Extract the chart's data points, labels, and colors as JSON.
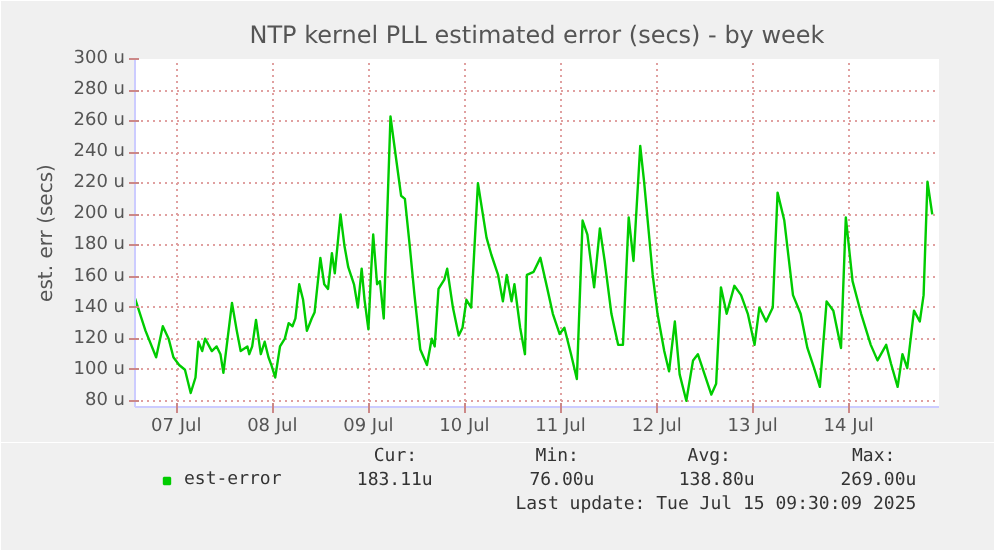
{
  "chart_data": {
    "type": "line",
    "title": "NTP kernel PLL estimated error (secs) - by week",
    "ylabel": "est. err (secs)",
    "x": [
      "2025-07-07T01:41",
      "2025-07-07T04:19",
      "2025-07-07T06:58",
      "2025-07-07T08:38",
      "2025-07-07T10:05",
      "2025-07-07T11:17",
      "2025-07-07T12:43",
      "2025-07-07T14:10",
      "2025-07-07T15:36",
      "2025-07-07T16:48",
      "2025-07-07T17:31",
      "2025-07-07T18:29",
      "2025-07-07T19:12",
      "2025-07-07T20:53",
      "2025-07-07T22:05",
      "2025-07-07T23:02",
      "2025-07-07T23:46",
      "2025-07-08T01:55",
      "2025-07-08T03:07",
      "2025-07-08T04:05",
      "2025-07-08T05:46",
      "2025-07-08T06:14",
      "2025-07-08T06:58",
      "2025-07-08T07:55",
      "2025-07-08T09:07",
      "2025-07-08T10:05",
      "2025-07-08T11:02",
      "2025-07-08T11:46",
      "2025-07-08T12:43",
      "2025-07-08T13:55",
      "2025-07-08T15:07",
      "2025-07-08T16:05",
      "2025-07-08T17:02",
      "2025-07-08T17:46",
      "2025-07-08T18:43",
      "2025-07-08T19:41",
      "2025-07-08T20:38",
      "2025-07-08T21:50",
      "2025-07-08T22:34",
      "2025-07-09T00:00",
      "2025-07-09T00:58",
      "2025-07-09T01:55",
      "2025-07-09T02:53",
      "2025-07-09T03:36",
      "2025-07-09T05:02",
      "2025-07-09T06:00",
      "2025-07-09T06:58",
      "2025-07-09T08:24",
      "2025-07-09T09:22",
      "2025-07-09T10:19",
      "2025-07-09T11:02",
      "2025-07-09T12:00",
      "2025-07-09T12:43",
      "2025-07-09T13:12",
      "2025-07-09T14:10",
      "2025-07-09T14:53",
      "2025-07-09T15:50",
      "2025-07-09T17:31",
      "2025-07-09T18:58",
      "2025-07-09T20:10",
      "2025-07-09T21:07",
      "2025-07-09T22:19",
      "2025-07-09T23:31",
      "2025-07-10T00:58",
      "2025-07-10T02:38",
      "2025-07-10T03:50",
      "2025-07-10T04:34",
      "2025-07-10T05:31",
      "2025-07-10T06:58",
      "2025-07-10T07:41",
      "2025-07-10T09:07",
      "2025-07-10T10:34",
      "2025-07-10T11:31",
      "2025-07-10T12:29",
      "2025-07-10T13:41",
      "2025-07-10T15:22",
      "2025-07-10T17:31",
      "2025-07-10T18:43",
      "2025-07-10T20:24",
      "2025-07-10T21:36",
      "2025-07-10T22:34",
      "2025-07-10T23:46",
      "2025-07-11T00:29",
      "2025-07-11T01:55",
      "2025-07-11T03:07",
      "2025-07-11T03:36",
      "2025-07-11T05:17",
      "2025-07-11T06:58",
      "2025-07-11T08:38",
      "2025-07-11T10:05",
      "2025-07-11T11:46",
      "2025-07-11T12:58",
      "2025-07-11T14:38",
      "2025-07-11T16:05",
      "2025-07-11T17:31",
      "2025-07-11T18:43",
      "2025-07-11T20:24",
      "2025-07-11T21:50",
      "2025-07-11T23:02",
      "2025-07-12T00:43",
      "2025-07-12T02:24",
      "2025-07-12T03:36",
      "2025-07-12T05:02",
      "2025-07-12T06:14",
      "2025-07-12T07:55",
      "2025-07-12T08:53",
      "2025-07-12T11:02",
      "2025-07-12T12:14",
      "2025-07-12T13:55",
      "2025-07-12T15:07",
      "2025-07-12T16:34",
      "2025-07-12T17:46",
      "2025-07-12T19:26",
      "2025-07-12T21:07",
      "2025-07-12T22:19",
      "2025-07-13T00:00",
      "2025-07-13T01:41",
      "2025-07-13T02:53",
      "2025-07-13T04:05",
      "2025-07-13T05:31",
      "2025-07-13T07:26",
      "2025-07-13T09:07",
      "2025-07-13T10:48",
      "2025-07-13T12:29",
      "2025-07-13T13:41",
      "2025-07-13T15:22",
      "2025-07-13T17:02",
      "2025-07-13T18:14",
      "2025-07-13T19:55",
      "2025-07-13T22:05",
      "2025-07-14T00:00",
      "2025-07-14T01:41",
      "2025-07-14T03:22",
      "2025-07-14T04:48",
      "2025-07-14T06:29",
      "2025-07-14T08:10",
      "2025-07-14T10:05",
      "2025-07-14T11:17",
      "2025-07-14T12:58",
      "2025-07-14T15:07",
      "2025-07-14T17:31",
      "2025-07-14T19:12",
      "2025-07-14T21:22",
      "2025-07-14T22:34",
      "2025-07-15T00:14",
      "2025-07-15T01:26",
      "2025-07-15T02:38",
      "2025-07-15T04:19",
      "2025-07-15T05:46",
      "2025-07-15T06:43",
      "2025-07-15T07:41",
      "2025-07-15T08:53"
    ],
    "series": [
      {
        "name": "est-error",
        "color": "#00cc00",
        "values": [
          146,
          125,
          108,
          128,
          120,
          108,
          103,
          100,
          85,
          95,
          118,
          112,
          120,
          112,
          115,
          110,
          98,
          143,
          125,
          112,
          115,
          110,
          115,
          132,
          110,
          118,
          108,
          103,
          95,
          115,
          120,
          130,
          128,
          133,
          155,
          145,
          125,
          133,
          137,
          172,
          155,
          152,
          175,
          162,
          200,
          180,
          166,
          155,
          140,
          165,
          145,
          126,
          165,
          187,
          155,
          157,
          133,
          263,
          235,
          212,
          210,
          180,
          148,
          113,
          103,
          120,
          115,
          152,
          158,
          165,
          140,
          122,
          127,
          145,
          140,
          220,
          185,
          174,
          161,
          144,
          161,
          144,
          155,
          127,
          110,
          161,
          163,
          172,
          153,
          136,
          123,
          127,
          110,
          94,
          196,
          187,
          153,
          191,
          170,
          136,
          116,
          116,
          198,
          170,
          244,
          221,
          161,
          136,
          112,
          99,
          131,
          97,
          80,
          106,
          110,
          97,
          84,
          91,
          153,
          136,
          154,
          148,
          136,
          116,
          140,
          131,
          140,
          214,
          196,
          148,
          136,
          114,
          101,
          89,
          144,
          138,
          114,
          198,
          157,
          136,
          116,
          106,
          116,
          104,
          89,
          110,
          101,
          138,
          131,
          148,
          221,
          200
        ]
      }
    ],
    "xlim": [
      "2025-07-07T01:41",
      "2025-07-15T10:34"
    ],
    "xticks": [
      {
        "value": "2025-07-07T12:00",
        "label": "07 Jul"
      },
      {
        "value": "2025-07-08T12:00",
        "label": "08 Jul"
      },
      {
        "value": "2025-07-09T12:00",
        "label": "09 Jul"
      },
      {
        "value": "2025-07-10T12:00",
        "label": "10 Jul"
      },
      {
        "value": "2025-07-11T12:00",
        "label": "11 Jul"
      },
      {
        "value": "2025-07-12T12:00",
        "label": "12 Jul"
      },
      {
        "value": "2025-07-13T12:00",
        "label": "13 Jul"
      },
      {
        "value": "2025-07-14T12:00",
        "label": "14 Jul"
      }
    ],
    "ylim": [
      76,
      300
    ],
    "yticks": [
      {
        "value": 80,
        "label": "80 u"
      },
      {
        "value": 100,
        "label": "100 u"
      },
      {
        "value": 120,
        "label": "120 u"
      },
      {
        "value": 140,
        "label": "140 u"
      },
      {
        "value": 160,
        "label": "160 u"
      },
      {
        "value": 180,
        "label": "180 u"
      },
      {
        "value": 200,
        "label": "200 u"
      },
      {
        "value": 220,
        "label": "220 u"
      },
      {
        "value": 240,
        "label": "240 u"
      },
      {
        "value": 260,
        "label": "260 u"
      },
      {
        "value": 280,
        "label": "280 u"
      },
      {
        "value": 300,
        "label": "300 u"
      }
    ],
    "grid": true,
    "legend": "bottom",
    "line_style": "solid",
    "annotations": [
      "Cur:",
      "183.11u",
      "Min:",
      "76.00u",
      "Avg:",
      "138.80u",
      "Max:",
      "269.00u",
      "Last update: Tue Jul 15 09:30:09 2025"
    ]
  }
}
